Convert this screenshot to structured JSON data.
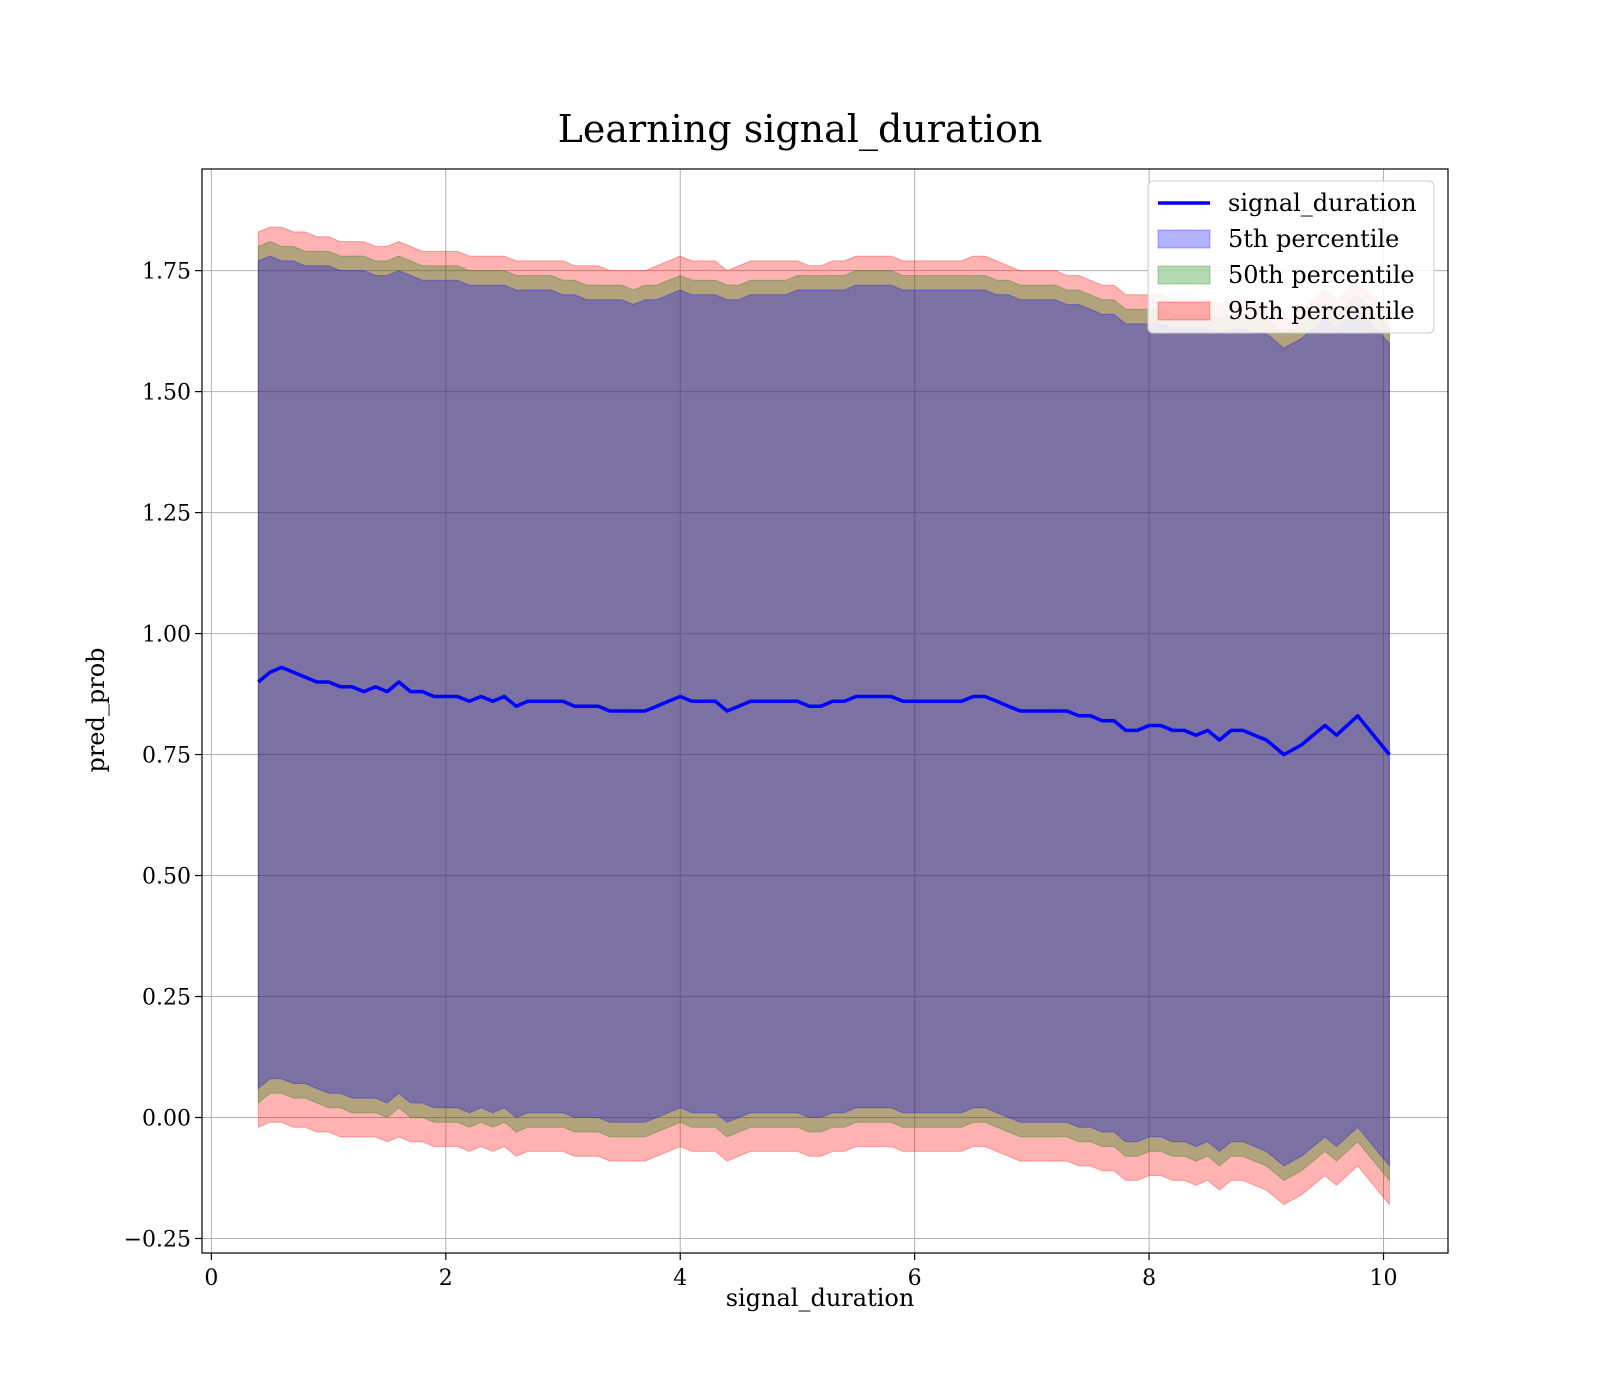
{
  "chart_data": {
    "type": "area",
    "title": "Learning signal_duration",
    "xlabel": "signal_duration",
    "ylabel": "pred_prob",
    "xlim": [
      -0.08,
      10.55
    ],
    "ylim": [
      -0.28,
      1.96
    ],
    "xticks": [
      0,
      2,
      4,
      6,
      8,
      10
    ],
    "xtick_labels": [
      "0",
      "2",
      "4",
      "6",
      "8",
      "10"
    ],
    "yticks": [
      -0.25,
      0.0,
      0.25,
      0.5,
      0.75,
      1.0,
      1.25,
      1.5,
      1.75
    ],
    "ytick_labels": [
      "−0.25",
      "0.00",
      "0.25",
      "0.50",
      "0.75",
      "1.00",
      "1.25",
      "1.50",
      "1.75"
    ],
    "grid": true,
    "legend_position": "top-right",
    "colors": {
      "line": "#0000ff",
      "band_5th": "#0000ff",
      "band_50th": "#008000",
      "band_95th": "#ff0000"
    },
    "x": [
      0.4,
      0.5,
      0.6,
      0.7,
      0.8,
      0.9,
      1.0,
      1.1,
      1.2,
      1.3,
      1.4,
      1.5,
      1.6,
      1.7,
      1.8,
      1.9,
      2.0,
      2.1,
      2.2,
      2.3,
      2.4,
      2.5,
      2.6,
      2.7,
      2.8,
      2.9,
      3.0,
      3.1,
      3.2,
      3.3,
      3.4,
      3.5,
      3.6,
      3.7,
      3.8,
      3.9,
      4.0,
      4.1,
      4.2,
      4.3,
      4.4,
      4.5,
      4.6,
      4.7,
      4.8,
      4.9,
      5.0,
      5.1,
      5.2,
      5.3,
      5.4,
      5.5,
      5.6,
      5.7,
      5.8,
      5.9,
      6.0,
      6.1,
      6.2,
      6.3,
      6.4,
      6.5,
      6.6,
      6.7,
      6.8,
      6.9,
      7.0,
      7.1,
      7.2,
      7.3,
      7.4,
      7.5,
      7.6,
      7.7,
      7.8,
      7.9,
      8.0,
      8.1,
      8.2,
      8.3,
      8.4,
      8.5,
      8.6,
      8.7,
      8.8,
      8.9,
      9.0,
      9.15,
      9.3,
      9.5,
      9.6,
      9.78,
      10.05
    ],
    "series": [
      {
        "name": "signal_duration",
        "kind": "line",
        "values": [
          0.9,
          0.92,
          0.93,
          0.92,
          0.91,
          0.9,
          0.9,
          0.89,
          0.89,
          0.88,
          0.89,
          0.88,
          0.9,
          0.88,
          0.88,
          0.87,
          0.87,
          0.87,
          0.86,
          0.87,
          0.86,
          0.87,
          0.85,
          0.86,
          0.86,
          0.86,
          0.86,
          0.85,
          0.85,
          0.85,
          0.84,
          0.84,
          0.84,
          0.84,
          0.85,
          0.86,
          0.87,
          0.86,
          0.86,
          0.86,
          0.84,
          0.85,
          0.86,
          0.86,
          0.86,
          0.86,
          0.86,
          0.85,
          0.85,
          0.86,
          0.86,
          0.87,
          0.87,
          0.87,
          0.87,
          0.86,
          0.86,
          0.86,
          0.86,
          0.86,
          0.86,
          0.87,
          0.87,
          0.86,
          0.85,
          0.84,
          0.84,
          0.84,
          0.84,
          0.84,
          0.83,
          0.83,
          0.82,
          0.82,
          0.8,
          0.8,
          0.81,
          0.81,
          0.8,
          0.8,
          0.79,
          0.8,
          0.78,
          0.8,
          0.8,
          0.79,
          0.78,
          0.75,
          0.77,
          0.81,
          0.79,
          0.83,
          0.75
        ]
      },
      {
        "name": "5th percentile",
        "kind": "band",
        "upper": [
          1.77,
          1.78,
          1.77,
          1.77,
          1.76,
          1.76,
          1.76,
          1.75,
          1.75,
          1.75,
          1.74,
          1.74,
          1.75,
          1.74,
          1.73,
          1.73,
          1.73,
          1.73,
          1.72,
          1.72,
          1.72,
          1.72,
          1.71,
          1.71,
          1.71,
          1.71,
          1.7,
          1.7,
          1.69,
          1.69,
          1.69,
          1.69,
          1.68,
          1.69,
          1.69,
          1.7,
          1.71,
          1.7,
          1.7,
          1.7,
          1.69,
          1.69,
          1.7,
          1.7,
          1.7,
          1.7,
          1.71,
          1.71,
          1.71,
          1.71,
          1.71,
          1.72,
          1.72,
          1.72,
          1.72,
          1.71,
          1.71,
          1.71,
          1.71,
          1.71,
          1.71,
          1.71,
          1.71,
          1.7,
          1.7,
          1.69,
          1.69,
          1.69,
          1.69,
          1.68,
          1.68,
          1.67,
          1.66,
          1.66,
          1.64,
          1.64,
          1.64,
          1.64,
          1.63,
          1.63,
          1.63,
          1.63,
          1.62,
          1.63,
          1.63,
          1.62,
          1.62,
          1.59,
          1.61,
          1.65,
          1.63,
          1.67,
          1.6
        ],
        "lower": [
          0.06,
          0.08,
          0.08,
          0.07,
          0.07,
          0.06,
          0.05,
          0.05,
          0.04,
          0.04,
          0.04,
          0.03,
          0.05,
          0.03,
          0.03,
          0.02,
          0.02,
          0.02,
          0.01,
          0.02,
          0.01,
          0.02,
          0.0,
          0.01,
          0.01,
          0.01,
          0.01,
          0.0,
          0.0,
          0.0,
          -0.01,
          -0.01,
          -0.01,
          -0.01,
          0.0,
          0.01,
          0.02,
          0.01,
          0.01,
          0.01,
          -0.01,
          0.0,
          0.01,
          0.01,
          0.01,
          0.01,
          0.01,
          0.0,
          0.0,
          0.01,
          0.01,
          0.02,
          0.02,
          0.02,
          0.02,
          0.01,
          0.01,
          0.01,
          0.01,
          0.01,
          0.01,
          0.02,
          0.02,
          0.01,
          0.0,
          -0.01,
          -0.01,
          -0.01,
          -0.01,
          -0.01,
          -0.02,
          -0.02,
          -0.03,
          -0.03,
          -0.05,
          -0.05,
          -0.04,
          -0.04,
          -0.05,
          -0.05,
          -0.06,
          -0.05,
          -0.07,
          -0.05,
          -0.05,
          -0.06,
          -0.07,
          -0.1,
          -0.08,
          -0.04,
          -0.06,
          -0.02,
          -0.1
        ]
      },
      {
        "name": "50th percentile",
        "kind": "band",
        "upper": [
          1.8,
          1.81,
          1.8,
          1.8,
          1.79,
          1.79,
          1.79,
          1.78,
          1.78,
          1.78,
          1.77,
          1.77,
          1.78,
          1.77,
          1.76,
          1.76,
          1.76,
          1.76,
          1.75,
          1.75,
          1.75,
          1.75,
          1.74,
          1.74,
          1.74,
          1.74,
          1.73,
          1.73,
          1.72,
          1.72,
          1.72,
          1.72,
          1.71,
          1.72,
          1.72,
          1.73,
          1.74,
          1.73,
          1.73,
          1.73,
          1.72,
          1.72,
          1.73,
          1.73,
          1.73,
          1.73,
          1.74,
          1.74,
          1.74,
          1.74,
          1.74,
          1.75,
          1.75,
          1.75,
          1.75,
          1.74,
          1.74,
          1.74,
          1.74,
          1.74,
          1.74,
          1.74,
          1.74,
          1.73,
          1.73,
          1.72,
          1.72,
          1.72,
          1.72,
          1.71,
          1.71,
          1.7,
          1.69,
          1.69,
          1.67,
          1.67,
          1.67,
          1.67,
          1.66,
          1.66,
          1.66,
          1.66,
          1.65,
          1.66,
          1.66,
          1.65,
          1.65,
          1.62,
          1.64,
          1.68,
          1.66,
          1.7,
          1.63
        ],
        "lower": [
          0.03,
          0.05,
          0.05,
          0.04,
          0.04,
          0.03,
          0.02,
          0.02,
          0.01,
          0.01,
          0.01,
          0.0,
          0.02,
          0.0,
          0.0,
          -0.01,
          -0.01,
          -0.01,
          -0.02,
          -0.01,
          -0.02,
          -0.01,
          -0.03,
          -0.02,
          -0.02,
          -0.02,
          -0.02,
          -0.03,
          -0.03,
          -0.03,
          -0.04,
          -0.04,
          -0.04,
          -0.04,
          -0.03,
          -0.02,
          -0.01,
          -0.02,
          -0.02,
          -0.02,
          -0.04,
          -0.03,
          -0.02,
          -0.02,
          -0.02,
          -0.02,
          -0.02,
          -0.03,
          -0.03,
          -0.02,
          -0.02,
          -0.01,
          -0.01,
          -0.01,
          -0.01,
          -0.02,
          -0.02,
          -0.02,
          -0.02,
          -0.02,
          -0.02,
          -0.01,
          -0.01,
          -0.02,
          -0.03,
          -0.04,
          -0.04,
          -0.04,
          -0.04,
          -0.04,
          -0.05,
          -0.05,
          -0.06,
          -0.06,
          -0.08,
          -0.08,
          -0.07,
          -0.07,
          -0.08,
          -0.08,
          -0.09,
          -0.08,
          -0.1,
          -0.08,
          -0.08,
          -0.09,
          -0.1,
          -0.13,
          -0.11,
          -0.07,
          -0.09,
          -0.05,
          -0.13
        ]
      },
      {
        "name": "95th percentile",
        "kind": "band",
        "upper": [
          1.83,
          1.84,
          1.84,
          1.83,
          1.83,
          1.82,
          1.82,
          1.81,
          1.81,
          1.81,
          1.8,
          1.8,
          1.81,
          1.8,
          1.79,
          1.79,
          1.79,
          1.79,
          1.78,
          1.78,
          1.78,
          1.78,
          1.77,
          1.77,
          1.77,
          1.77,
          1.77,
          1.76,
          1.76,
          1.76,
          1.75,
          1.75,
          1.75,
          1.75,
          1.76,
          1.77,
          1.78,
          1.77,
          1.77,
          1.77,
          1.75,
          1.76,
          1.77,
          1.77,
          1.77,
          1.77,
          1.77,
          1.76,
          1.76,
          1.77,
          1.77,
          1.78,
          1.78,
          1.78,
          1.78,
          1.77,
          1.77,
          1.77,
          1.77,
          1.77,
          1.77,
          1.78,
          1.78,
          1.77,
          1.76,
          1.75,
          1.75,
          1.75,
          1.75,
          1.74,
          1.74,
          1.73,
          1.72,
          1.72,
          1.7,
          1.7,
          1.7,
          1.7,
          1.69,
          1.69,
          1.69,
          1.69,
          1.68,
          1.69,
          1.69,
          1.68,
          1.68,
          1.65,
          1.67,
          1.71,
          1.69,
          1.73,
          1.66
        ],
        "lower": [
          -0.02,
          -0.01,
          -0.01,
          -0.02,
          -0.02,
          -0.03,
          -0.03,
          -0.04,
          -0.04,
          -0.04,
          -0.04,
          -0.05,
          -0.04,
          -0.05,
          -0.05,
          -0.06,
          -0.06,
          -0.06,
          -0.07,
          -0.06,
          -0.07,
          -0.06,
          -0.08,
          -0.07,
          -0.07,
          -0.07,
          -0.07,
          -0.08,
          -0.08,
          -0.08,
          -0.09,
          -0.09,
          -0.09,
          -0.09,
          -0.08,
          -0.07,
          -0.06,
          -0.07,
          -0.07,
          -0.07,
          -0.09,
          -0.08,
          -0.07,
          -0.07,
          -0.07,
          -0.07,
          -0.07,
          -0.08,
          -0.08,
          -0.07,
          -0.07,
          -0.06,
          -0.06,
          -0.06,
          -0.06,
          -0.07,
          -0.07,
          -0.07,
          -0.07,
          -0.07,
          -0.07,
          -0.06,
          -0.06,
          -0.07,
          -0.08,
          -0.09,
          -0.09,
          -0.09,
          -0.09,
          -0.09,
          -0.1,
          -0.1,
          -0.11,
          -0.11,
          -0.13,
          -0.13,
          -0.12,
          -0.12,
          -0.13,
          -0.13,
          -0.14,
          -0.13,
          -0.15,
          -0.13,
          -0.13,
          -0.14,
          -0.15,
          -0.18,
          -0.16,
          -0.12,
          -0.14,
          -0.1,
          -0.18
        ]
      }
    ]
  }
}
